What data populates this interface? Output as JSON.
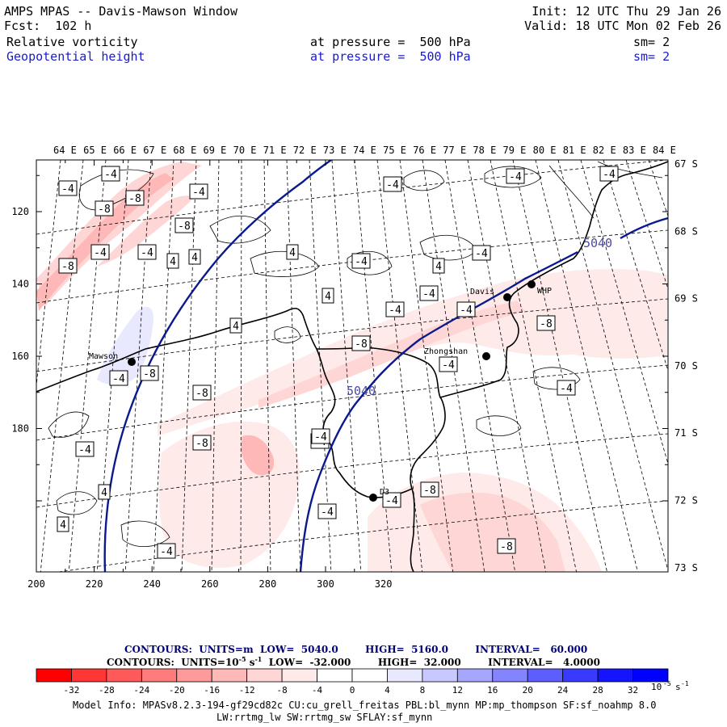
{
  "header": {
    "title": "AMPS MPAS -- Davis-Mawson Window",
    "forecast": "Fcst:  102 h",
    "init": "Init: 12 UTC Thu 29 Jan 26",
    "valid": "Valid: 18 UTC Mon 02 Feb 26",
    "field1_name": "Relative vorticity",
    "field1_level": "at pressure =  500 hPa",
    "field1_sm": "sm= 2",
    "field2_name": "Geopotential height",
    "field2_level": "at pressure =  500 hPa",
    "field2_sm": "sm= 2"
  },
  "map": {
    "longitude_labels": [
      "64 E",
      "65 E",
      "66 E",
      "67 E",
      "68 E",
      "69 E",
      "70 E",
      "71 E",
      "72 E",
      "73 E",
      "74 E",
      "75 E",
      "76 E",
      "77 E",
      "78 E",
      "79 E",
      "80 E",
      "81 E",
      "82 E",
      "83 E",
      "84 E"
    ],
    "latitude_labels": [
      "67 S",
      "68 S",
      "69 S",
      "70 S",
      "71 S",
      "72 S",
      "73 S"
    ],
    "x_ticks": [
      "200",
      "220",
      "240",
      "260",
      "280",
      "300",
      "320"
    ],
    "y_ticks": [
      "120",
      "140",
      "160",
      "180"
    ],
    "stations": [
      {
        "name": "Mawson"
      },
      {
        "name": "Davis"
      },
      {
        "name": "WHP"
      },
      {
        "name": "Zhongshan"
      },
      {
        "name": "D3"
      }
    ],
    "height_labels": [
      "5040",
      "5040"
    ],
    "vorticity_labels": [
      "-4",
      "-4",
      "-4",
      "-8",
      "-8",
      "-4",
      "-8",
      "-4",
      "-4",
      "-8",
      "4",
      "4",
      "-4",
      "4",
      "-4",
      "4",
      "4",
      "-4",
      "-4",
      "4",
      "-4",
      "-8",
      "4",
      "-4",
      "-4",
      "-8",
      "-4",
      "-8",
      "-8",
      "-4",
      "-4",
      "-4",
      "-8",
      "4",
      "-8",
      "4",
      "-4",
      "-4",
      "-4",
      "-4",
      "-4",
      "4",
      "-4",
      "4",
      "-4",
      "-8",
      "-8"
    ]
  },
  "captions": {
    "height_contours": "CONTOURS:  UNITS=m  LOW=  5040.0        HIGH=  5160.0        INTERVAL=   60.000",
    "vort_contours_prefix": "CONTOURS:  UNITS=10",
    "vort_contours_exp": "-5",
    "vort_contours_suffix": " s",
    "vort_contours_exp2": "-1",
    "vort_contours_rest": "  LOW=  -32.000        HIGH=  32.000        INTERVAL=   4.0000"
  },
  "colorbar": {
    "colors": [
      "#ff0000",
      "#ff3636",
      "#ff5a5a",
      "#ff7c7c",
      "#ff9a9a",
      "#ffb8b8",
      "#ffd6d6",
      "#ffeaea",
      "#ffffff",
      "#ffffff",
      "#e8e8ff",
      "#c8c8ff",
      "#a6a6ff",
      "#8484ff",
      "#5e5eff",
      "#3a3aff",
      "#1414ff",
      "#0000ff"
    ],
    "labels": [
      "-32",
      "-28",
      "-24",
      "-20",
      "-16",
      "-12",
      "-8",
      "-4",
      "0",
      "4",
      "8",
      "12",
      "16",
      "20",
      "24",
      "28",
      "32"
    ],
    "unit_base": "10",
    "unit_exp": "-5",
    "unit_s": "s",
    "unit_exp2": "-1"
  },
  "model_info": {
    "line1": "Model Info: MPASv8.2.3-194-gf29cd82c CU:cu_grell_freitas PBL:bl_mynn MP:mp_thompson SF:sf_noahmp 8.0",
    "line2": "LW:rrtmg_lw SW:rrtmg_sw SFLAY:sf_mynn"
  },
  "colors": {
    "height_contour": "#0a1a8c",
    "coast": "#000000",
    "positive_vort": "#ff9a9a"
  }
}
